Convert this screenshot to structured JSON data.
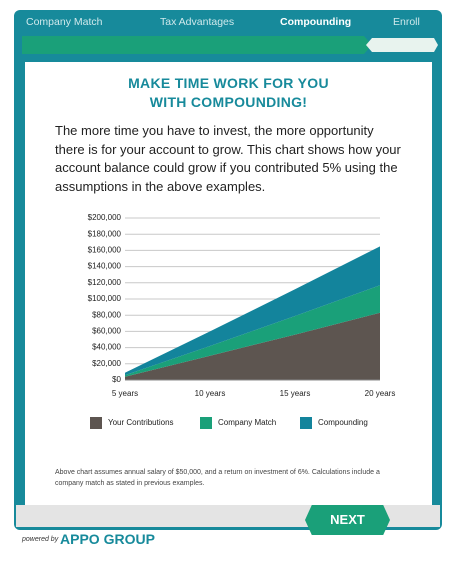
{
  "nav": [
    "Company Match",
    "Tax Advantages",
    "Compounding",
    "Enroll"
  ],
  "active_tab": "Compounding",
  "heading": [
    "MAKE TIME WORK FOR YOU",
    "WITH COMPOUNDING!"
  ],
  "paragraph": "The more time you have to invest, the more opportunity there is for your account to grow. This chart shows how your account balance could grow if you contributed 5% using the assumptions in the above examples.",
  "chart_data": {
    "type": "stacked_area",
    "categories": [
      "5 years",
      "10 years",
      "15 years",
      "20 years"
    ],
    "series": [
      {
        "name": "Your Contributions",
        "color": "#5d5550",
        "values": [
          4000,
          30000,
          56000,
          83000
        ]
      },
      {
        "name": "Company Match",
        "color": "#1aa079",
        "values": [
          2000,
          12000,
          23000,
          34000
        ]
      },
      {
        "name": "Compounding",
        "color": "#13849c",
        "values": [
          3000,
          18000,
          33000,
          48000
        ]
      }
    ],
    "ylim": [
      0,
      200000
    ],
    "yticks": [
      {
        "value": 0,
        "label": "$0"
      },
      {
        "value": 20000,
        "label": "$20,000"
      },
      {
        "value": 40000,
        "label": "$40,000"
      },
      {
        "value": 60000,
        "label": "$60,000"
      },
      {
        "value": 80000,
        "label": "$80,000"
      },
      {
        "value": 100000,
        "label": "$100,000"
      },
      {
        "value": 120000,
        "label": "$120,000"
      },
      {
        "value": 140000,
        "label": "$140,000"
      },
      {
        "value": 160000,
        "label": "$160,000"
      },
      {
        "value": 180000,
        "label": "$180,000"
      },
      {
        "value": 200000,
        "label": "$200,000"
      }
    ],
    "grid": true,
    "legend": "bottom"
  },
  "footnote": "Above chart assumes annual salary of $50,000, and a return on investment of 6%. Calculations include a company match as stated in previous examples.",
  "button": "NEXT",
  "powered_by": "powered by",
  "brand": "APPO GROUP"
}
